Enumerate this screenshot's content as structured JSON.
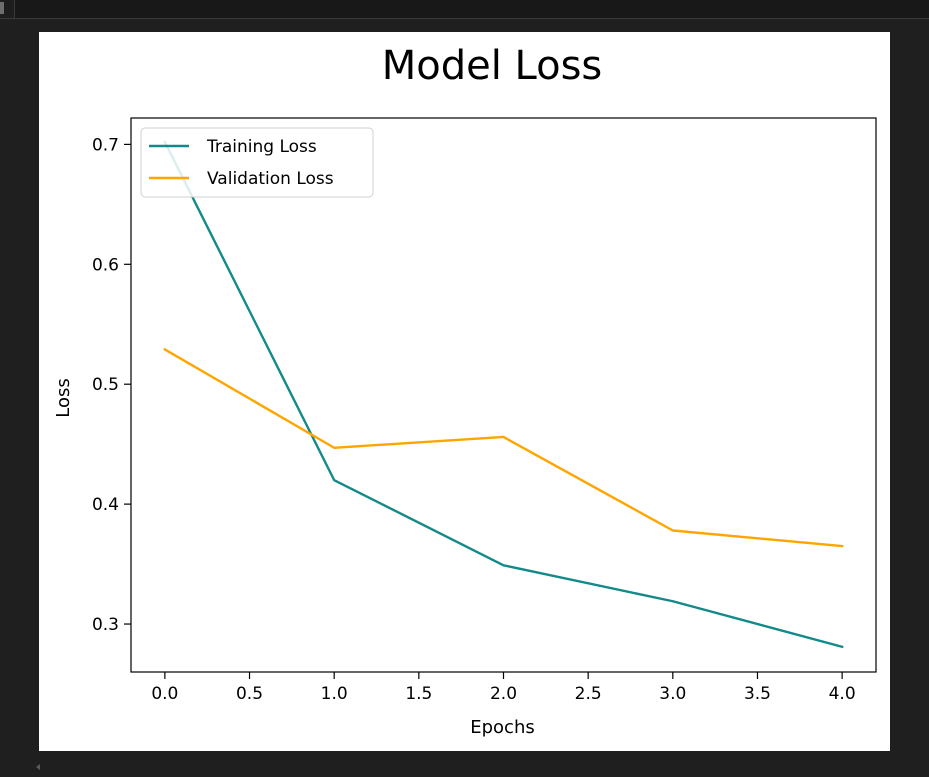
{
  "chart_data": {
    "type": "line",
    "title": "Model Loss",
    "xlabel": "Epochs",
    "ylabel": "Loss",
    "x": [
      0,
      1,
      2,
      3,
      4
    ],
    "xlim": [
      -0.2,
      4.2
    ],
    "ylim": [
      0.26,
      0.722
    ],
    "xticks": [
      0.0,
      0.5,
      1.0,
      1.5,
      2.0,
      2.5,
      3.0,
      3.5,
      4.0
    ],
    "xtick_labels": [
      "0.0",
      "0.5",
      "1.0",
      "1.5",
      "2.0",
      "2.5",
      "3.0",
      "3.5",
      "4.0"
    ],
    "yticks": [
      0.3,
      0.4,
      0.5,
      0.6,
      0.7
    ],
    "ytick_labels": [
      "0.3",
      "0.4",
      "0.5",
      "0.6",
      "0.7"
    ],
    "grid": false,
    "legend_position": "upper-left",
    "series": [
      {
        "name": "Training Loss",
        "color": "#138a8a",
        "values": [
          0.702,
          0.42,
          0.349,
          0.319,
          0.281
        ]
      },
      {
        "name": "Validation Loss",
        "color": "#ffa500",
        "values": [
          0.529,
          0.447,
          0.456,
          0.378,
          0.365
        ]
      }
    ]
  }
}
